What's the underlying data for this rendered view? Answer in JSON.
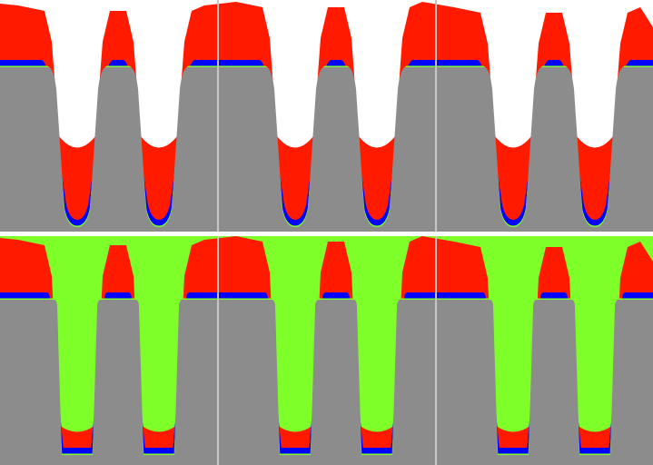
{
  "figure": {
    "panel_count": 2,
    "tiles_per_panel": 3,
    "trenches_per_tile": 2,
    "trench_style": [
      "rounded",
      "square"
    ],
    "colors": {
      "background": "#ffffff",
      "substrate": "#8c8c8c",
      "deposit": "#ff1a00",
      "liner": "#0000ff",
      "interface": "#7fff2a",
      "seam": "#c8c8c8"
    }
  }
}
